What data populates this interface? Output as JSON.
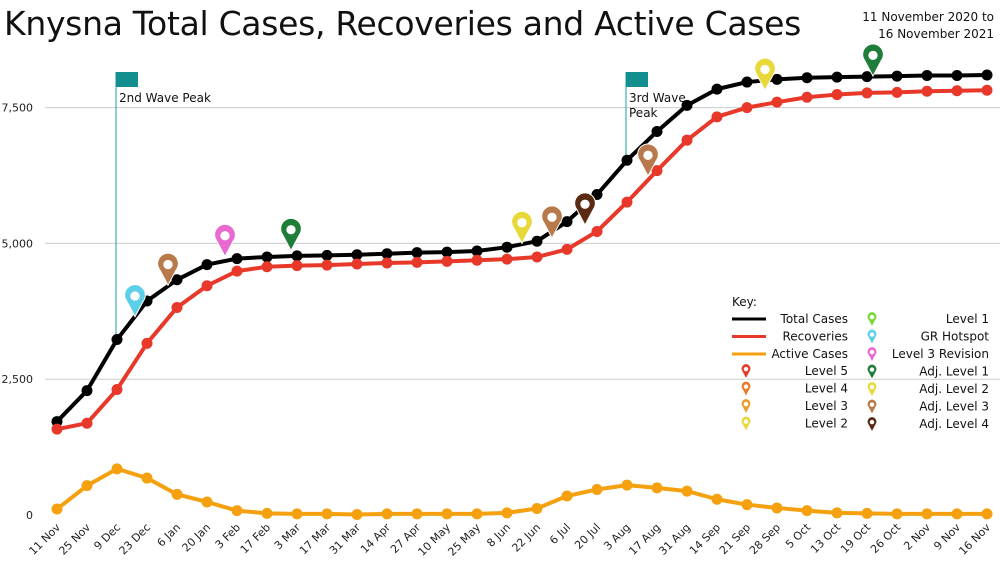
{
  "title": "Knysna Total Cases, Recoveries and Active Cases",
  "subtitle_line1": "11 November 2020 to",
  "subtitle_line2": "16 November 2021",
  "colors": {
    "total": "#000000",
    "recoveries": "#e8382a",
    "active": "#f5a00f",
    "annotation_line": "#17a2a2",
    "grid": "#cccccc"
  },
  "chart_data": {
    "type": "line",
    "categories": [
      "11 Nov",
      "25 Nov",
      "9 Dec",
      "23 Dec",
      "6 Jan",
      "20 Jan",
      "3 Feb",
      "17 Feb",
      "3 Mar",
      "17 Mar",
      "31 Mar",
      "14 Apr",
      "27 Apr",
      "10 May",
      "25 May",
      "8 Jun",
      "22 Jun",
      "6 Jul",
      "20 Jul",
      "3 Aug",
      "17 Aug",
      "31 Aug",
      "14 Sep",
      "21 Sep",
      "28 Sep",
      "5 Oct",
      "13 Oct",
      "19 Oct",
      "26 Oct",
      "2 Nov",
      "9 Nov",
      "16 Nov"
    ],
    "ylim": [
      0,
      8100
    ],
    "yticks": [
      0,
      2500,
      5000,
      7500
    ],
    "ytick_labels": [
      "0",
      "2,500",
      "5,000",
      "7,500"
    ],
    "grid": true,
    "series": [
      {
        "name": "Total Cases",
        "color": "#000000",
        "values": [
          1720,
          2290,
          3230,
          3940,
          4330,
          4610,
          4720,
          4750,
          4770,
          4780,
          4790,
          4810,
          4830,
          4840,
          4860,
          4930,
          5040,
          5400,
          5900,
          6530,
          7060,
          7540,
          7840,
          7970,
          8020,
          8050,
          8060,
          8070,
          8080,
          8090,
          8090,
          8100
        ]
      },
      {
        "name": "Recoveries",
        "color": "#e8382a",
        "values": [
          1580,
          1690,
          2310,
          3160,
          3820,
          4220,
          4490,
          4570,
          4590,
          4600,
          4620,
          4640,
          4650,
          4670,
          4690,
          4710,
          4750,
          4890,
          5220,
          5760,
          6340,
          6900,
          7330,
          7500,
          7600,
          7690,
          7740,
          7770,
          7780,
          7800,
          7810,
          7820
        ]
      },
      {
        "name": "Active Cases",
        "color": "#f5a00f",
        "values": [
          110,
          540,
          850,
          680,
          380,
          240,
          80,
          30,
          20,
          20,
          10,
          20,
          20,
          20,
          20,
          40,
          120,
          350,
          470,
          550,
          500,
          440,
          290,
          190,
          130,
          80,
          40,
          30,
          20,
          20,
          20,
          20
        ]
      }
    ],
    "annotations": [
      {
        "label": "2nd Wave Peak",
        "x_index": 2
      },
      {
        "label": "3rd Wave",
        "label2": "Peak",
        "x_index": 19
      }
    ],
    "markers": [
      {
        "x_index": 2.6,
        "value": 3650,
        "color": "#5bd0e8",
        "level": "GR Hotspot"
      },
      {
        "x_index": 3.7,
        "value": 4230,
        "color": "#b87a4a",
        "level": "Adj. Level 3"
      },
      {
        "x_index": 5.6,
        "value": 4760,
        "color": "#e86ad0",
        "level": "Level 3 Revision"
      },
      {
        "x_index": 7.8,
        "value": 4870,
        "color": "#1f7d3a",
        "level": "Adj. Level 1"
      },
      {
        "x_index": 15.5,
        "value": 5000,
        "color": "#e8d83a",
        "level": "Adj. Level 2"
      },
      {
        "x_index": 16.5,
        "value": 5100,
        "color": "#b87a4a",
        "level": "Adj. Level 3"
      },
      {
        "x_index": 17.6,
        "value": 5340,
        "color": "#5a2a12",
        "level": "Adj. Level 4"
      },
      {
        "x_index": 19.7,
        "value": 6240,
        "color": "#b87a4a",
        "level": "Adj. Level 3"
      },
      {
        "x_index": 23.6,
        "value": 7820,
        "color": "#e8d83a",
        "level": "Adj. Level 2"
      },
      {
        "x_index": 27.2,
        "value": 8080,
        "color": "#1f7d3a",
        "level": "Adj. Level 1"
      }
    ],
    "legend": {
      "placement": "right",
      "key_label": "Key:",
      "lines": [
        {
          "label": "Total Cases",
          "color": "#000000"
        },
        {
          "label": "Recoveries",
          "color": "#e8382a"
        },
        {
          "label": "Active Cases",
          "color": "#f5a00f"
        }
      ],
      "pins_left": [
        {
          "label": "Level 5",
          "color": "#e8382a"
        },
        {
          "label": "Level 4",
          "color": "#e87a2a"
        },
        {
          "label": "Level 3",
          "color": "#e8a02a"
        },
        {
          "label": "Level 2",
          "color": "#e8d83a"
        }
      ],
      "pins_right": [
        {
          "label": "Level 1",
          "color": "#7ad83a"
        },
        {
          "label": "GR Hotspot",
          "color": "#5bd0e8"
        },
        {
          "label": "Level 3 Revision",
          "color": "#e86ad0"
        },
        {
          "label": "Adj. Level 1",
          "color": "#1f7d3a"
        },
        {
          "label": "Adj. Level 2",
          "color": "#e8d83a"
        },
        {
          "label": "Adj. Level 3",
          "color": "#b87a4a"
        },
        {
          "label": "Adj. Level 4",
          "color": "#5a2a12"
        }
      ]
    }
  }
}
